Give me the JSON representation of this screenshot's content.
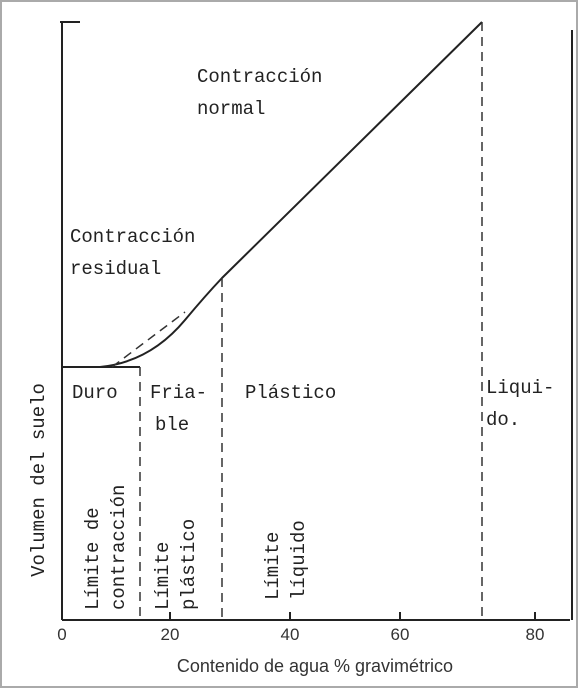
{
  "diagram": {
    "axis": {
      "x_label": "Contenido de agua  % gravimétrico",
      "y_label": "Volumen del suelo",
      "x_ticks": [
        "0",
        "20",
        "40",
        "60",
        "80"
      ]
    },
    "curve_labels": {
      "normal": [
        "Contracción",
        "normal"
      ],
      "residual": [
        "Contracción",
        "residual"
      ]
    },
    "states": {
      "hard": "Duro",
      "friable": [
        "Fria-",
        "ble"
      ],
      "plastic": "Plástico",
      "liquid": [
        "Liqui-",
        "do."
      ]
    },
    "limits": {
      "shrinkage": [
        "Límite de",
        "contracción"
      ],
      "plastic": [
        "Límite",
        "plástico"
      ],
      "liquid": [
        "Límite",
        "líquido"
      ]
    }
  }
}
